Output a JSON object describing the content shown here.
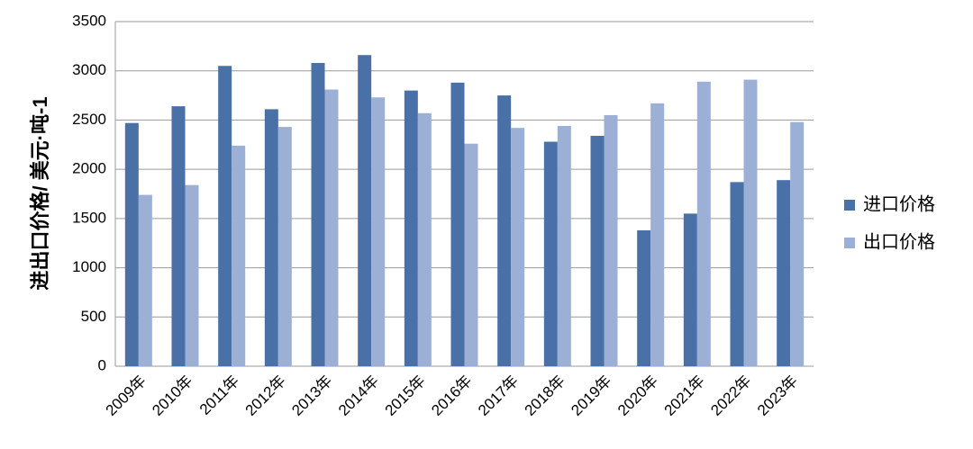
{
  "chart_data": {
    "type": "bar",
    "y_label": "进出口价格/ 美元·吨-1",
    "categories": [
      "2009年",
      "2010年",
      "2011年",
      "2012年",
      "2013年",
      "2014年",
      "2015年",
      "2016年",
      "2017年",
      "2018年",
      "2019年",
      "2020年",
      "2021年",
      "2022年",
      "2023年"
    ],
    "series": [
      {
        "name": "进口价格",
        "color": "#4a70a8",
        "values": [
          2470,
          2640,
          3050,
          2610,
          3080,
          3160,
          2800,
          2880,
          2750,
          2280,
          2340,
          1380,
          1550,
          1870,
          1890
        ]
      },
      {
        "name": "出口价格",
        "color": "#9cb0d6",
        "values": [
          1740,
          1840,
          2240,
          2430,
          2810,
          2730,
          2570,
          2260,
          2420,
          2440,
          2550,
          2670,
          2890,
          2910,
          2480
        ]
      }
    ],
    "ylim": [
      0,
      3500
    ],
    "yticks": [
      0,
      500,
      1000,
      1500,
      2000,
      2500,
      3000,
      3500
    ],
    "grid": true
  }
}
